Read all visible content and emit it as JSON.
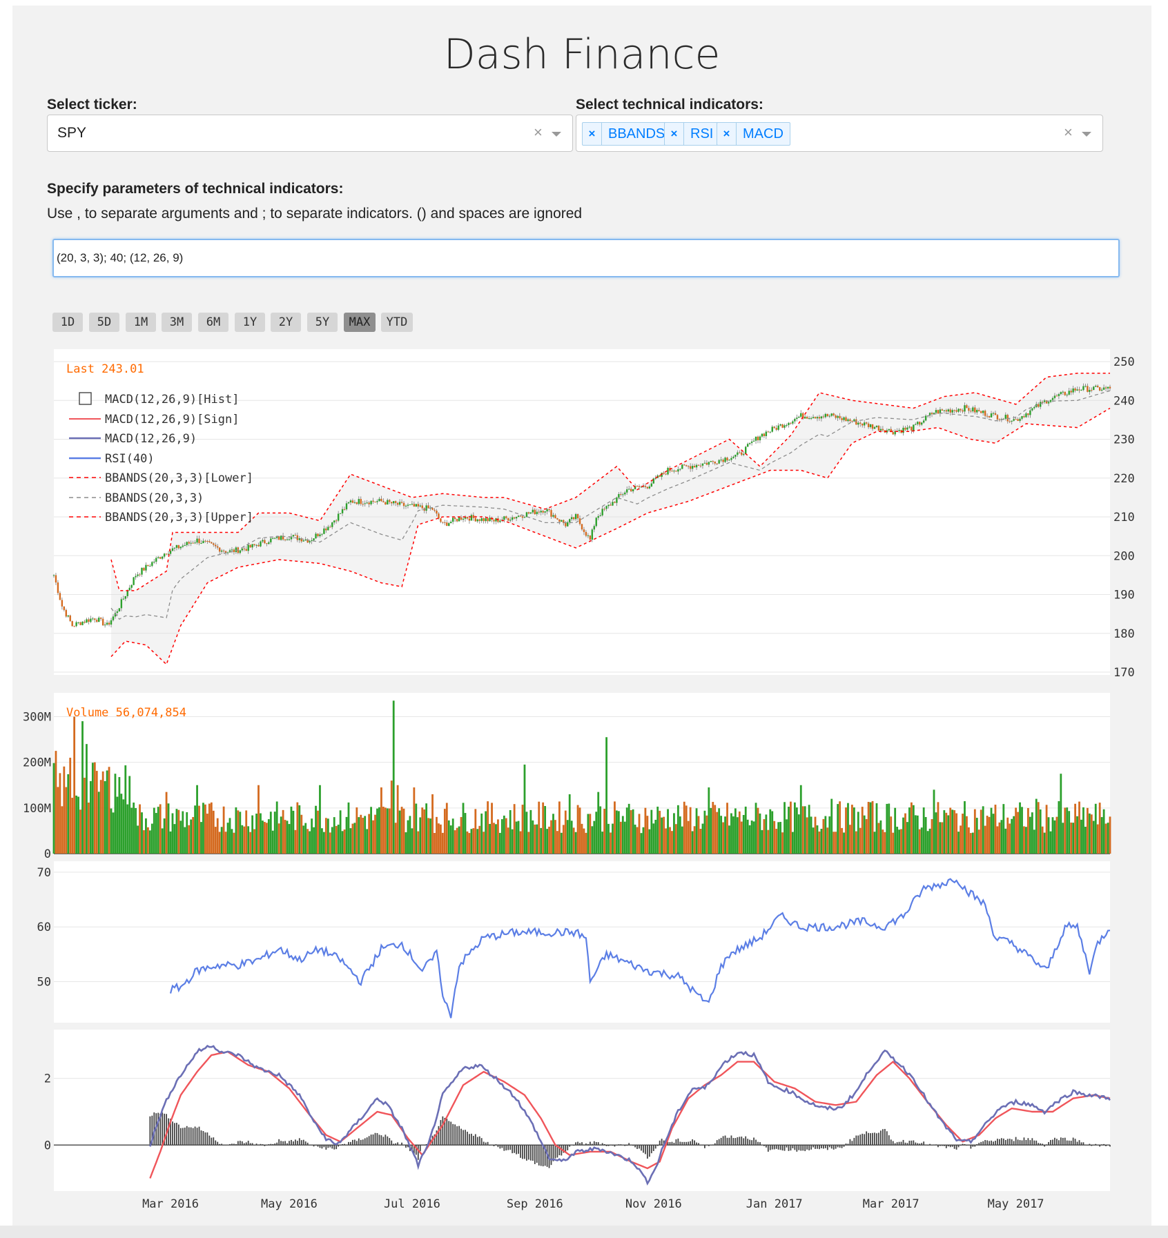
{
  "title": "Dash Finance",
  "ticker": {
    "label": "Select ticker:",
    "value": "SPY"
  },
  "indicators": {
    "label": "Select technical indicators:",
    "tags": [
      "BBANDS",
      "RSI",
      "MACD"
    ]
  },
  "params": {
    "label": "Specify parameters of technical indicators:",
    "hint": "Use , to separate arguments and ; to separate indicators. () and spaces are ignored",
    "value": "(20, 3, 3); 40; (12, 26, 9)"
  },
  "ranges": {
    "buttons": [
      "1D",
      "5D",
      "1M",
      "3M",
      "6M",
      "1Y",
      "2Y",
      "5Y",
      "MAX",
      "YTD"
    ],
    "active": "MAX"
  },
  "colors": {
    "up": "#2ca02c",
    "down": "#d46a1f",
    "bband_outer": "#ff0000",
    "bband_mid": "#8c8c8c",
    "rsi": "#5b7ee5",
    "macd": "#6b6fb5",
    "signal": "#f0555a",
    "annot": "#ff6a00"
  },
  "chart_data": [
    {
      "type": "candlestick",
      "annotation": "Last 243.01",
      "ylim": [
        170,
        250
      ],
      "yticks": [
        170,
        180,
        190,
        200,
        210,
        220,
        230,
        240,
        250
      ],
      "legend": [
        "MACD(12,26,9)[Hist]",
        "MACD(12,26,9)[Sign]",
        "MACD(12,26,9)",
        "RSI(40)",
        "BBANDS(20,3,3)[Lower]",
        "BBANDS(20,3,3)",
        "BBANDS(20,3,3)[Upper]"
      ],
      "legend_position": "top-left",
      "close_anchors": [
        [
          0,
          195
        ],
        [
          4,
          187
        ],
        [
          9,
          182
        ],
        [
          14,
          183
        ],
        [
          20,
          184
        ],
        [
          26,
          182
        ],
        [
          30,
          185
        ],
        [
          40,
          195
        ],
        [
          55,
          201
        ],
        [
          70,
          204
        ],
        [
          85,
          201
        ],
        [
          95,
          202
        ],
        [
          105,
          204
        ],
        [
          115,
          205
        ],
        [
          125,
          204
        ],
        [
          135,
          208
        ],
        [
          145,
          214
        ],
        [
          160,
          214
        ],
        [
          170,
          213
        ],
        [
          185,
          212
        ],
        [
          190,
          208
        ],
        [
          200,
          210
        ],
        [
          215,
          209
        ],
        [
          225,
          210
        ],
        [
          240,
          212
        ],
        [
          250,
          208
        ],
        [
          255,
          210
        ],
        [
          262,
          204
        ],
        [
          265,
          210
        ],
        [
          280,
          217
        ],
        [
          290,
          218
        ],
        [
          300,
          222
        ],
        [
          320,
          224
        ],
        [
          335,
          226
        ],
        [
          345,
          231
        ],
        [
          365,
          236
        ],
        [
          380,
          236
        ],
        [
          395,
          234
        ],
        [
          410,
          232
        ],
        [
          420,
          233
        ],
        [
          430,
          237
        ],
        [
          445,
          238
        ],
        [
          460,
          236
        ],
        [
          470,
          235
        ],
        [
          485,
          240
        ],
        [
          500,
          243
        ],
        [
          516,
          243
        ]
      ],
      "bb_upper_anchors": [
        [
          28,
          199
        ],
        [
          32,
          191
        ],
        [
          40,
          191
        ],
        [
          55,
          196
        ],
        [
          58,
          206
        ],
        [
          70,
          206
        ],
        [
          90,
          206
        ],
        [
          100,
          211
        ],
        [
          115,
          211
        ],
        [
          130,
          209
        ],
        [
          145,
          221
        ],
        [
          160,
          218
        ],
        [
          175,
          215
        ],
        [
          190,
          216
        ],
        [
          210,
          215
        ],
        [
          220,
          215
        ],
        [
          240,
          212
        ],
        [
          255,
          215
        ],
        [
          275,
          223
        ],
        [
          285,
          217
        ],
        [
          300,
          222
        ],
        [
          330,
          230
        ],
        [
          345,
          223
        ],
        [
          360,
          231
        ],
        [
          374,
          242
        ],
        [
          390,
          240
        ],
        [
          405,
          239
        ],
        [
          420,
          238
        ],
        [
          435,
          241
        ],
        [
          450,
          242
        ],
        [
          470,
          239
        ],
        [
          485,
          246
        ],
        [
          500,
          247
        ],
        [
          516,
          247
        ]
      ],
      "bb_lower_anchors": [
        [
          28,
          174
        ],
        [
          35,
          178
        ],
        [
          45,
          177
        ],
        [
          55,
          172
        ],
        [
          62,
          182
        ],
        [
          75,
          193
        ],
        [
          90,
          197
        ],
        [
          110,
          199
        ],
        [
          130,
          198
        ],
        [
          145,
          196
        ],
        [
          160,
          193
        ],
        [
          170,
          192
        ],
        [
          178,
          208
        ],
        [
          190,
          210
        ],
        [
          210,
          210
        ],
        [
          220,
          209
        ],
        [
          240,
          205
        ],
        [
          255,
          202
        ],
        [
          275,
          207
        ],
        [
          290,
          211
        ],
        [
          310,
          214
        ],
        [
          330,
          218
        ],
        [
          350,
          222
        ],
        [
          365,
          222
        ],
        [
          378,
          220
        ],
        [
          390,
          229
        ],
        [
          402,
          232
        ],
        [
          418,
          232
        ],
        [
          432,
          233
        ],
        [
          448,
          230
        ],
        [
          460,
          229
        ],
        [
          475,
          234
        ],
        [
          500,
          233
        ],
        [
          516,
          238
        ]
      ]
    },
    {
      "type": "bar",
      "annotation": "Volume 56,074,854",
      "ylim": [
        0,
        340
      ],
      "yticks": [
        {
          "value": 0,
          "label": "0"
        },
        {
          "value": 100,
          "label": "100M"
        },
        {
          "value": 200,
          "label": "200M"
        },
        {
          "value": 300,
          "label": "300M"
        }
      ],
      "spikes": [
        [
          1,
          225
        ],
        [
          8,
          210
        ],
        [
          10,
          300
        ],
        [
          14,
          290
        ],
        [
          16,
          240
        ],
        [
          20,
          200
        ],
        [
          24,
          180
        ],
        [
          27,
          190
        ],
        [
          30,
          175
        ],
        [
          37,
          170
        ],
        [
          55,
          135
        ],
        [
          70,
          150
        ],
        [
          100,
          150
        ],
        [
          130,
          150
        ],
        [
          160,
          145
        ],
        [
          165,
          160
        ],
        [
          166,
          335
        ],
        [
          168,
          150
        ],
        [
          176,
          145
        ],
        [
          182,
          110
        ],
        [
          185,
          130
        ],
        [
          230,
          195
        ],
        [
          252,
          130
        ],
        [
          266,
          135
        ],
        [
          270,
          255
        ],
        [
          320,
          145
        ],
        [
          365,
          150
        ],
        [
          380,
          120
        ],
        [
          400,
          115
        ],
        [
          430,
          140
        ],
        [
          480,
          120
        ],
        [
          492,
          175
        ],
        [
          505,
          100
        ],
        [
          512,
          80
        ]
      ]
    },
    {
      "type": "line",
      "series": [
        {
          "name": "RSI(40)"
        }
      ],
      "ylim": [
        43,
        71
      ],
      "yticks": [
        50,
        60,
        70
      ],
      "anchors": [
        [
          57,
          48.5
        ],
        [
          62,
          49
        ],
        [
          70,
          52
        ],
        [
          80,
          53
        ],
        [
          90,
          53
        ],
        [
          100,
          54
        ],
        [
          110,
          56
        ],
        [
          120,
          54
        ],
        [
          130,
          56
        ],
        [
          140,
          54
        ],
        [
          150,
          50
        ],
        [
          160,
          56
        ],
        [
          170,
          57
        ],
        [
          180,
          52
        ],
        [
          187,
          55
        ],
        [
          188,
          54
        ],
        [
          190,
          47
        ],
        [
          194,
          44
        ],
        [
          198,
          53
        ],
        [
          210,
          58
        ],
        [
          225,
          59
        ],
        [
          240,
          59
        ],
        [
          255,
          59
        ],
        [
          260,
          58
        ],
        [
          262,
          50
        ],
        [
          270,
          55
        ],
        [
          290,
          52
        ],
        [
          305,
          51
        ],
        [
          316,
          47
        ],
        [
          320,
          46
        ],
        [
          325,
          52
        ],
        [
          330,
          55
        ],
        [
          345,
          58
        ],
        [
          355,
          62
        ],
        [
          365,
          60
        ],
        [
          380,
          60
        ],
        [
          395,
          61
        ],
        [
          405,
          60
        ],
        [
          415,
          62
        ],
        [
          425,
          67
        ],
        [
          435,
          68
        ],
        [
          441,
          69
        ],
        [
          445,
          67
        ],
        [
          455,
          64
        ],
        [
          460,
          58
        ],
        [
          468,
          57
        ],
        [
          475,
          55
        ],
        [
          485,
          52
        ],
        [
          494,
          60
        ],
        [
          500,
          60
        ],
        [
          506,
          52
        ],
        [
          510,
          57
        ],
        [
          518,
          61
        ],
        [
          526,
          60
        ],
        [
          535,
          62
        ],
        [
          545,
          61
        ]
      ]
    },
    {
      "type": "line",
      "series": [
        {
          "name": "MACD(12,26,9)"
        },
        {
          "name": "MACD(12,26,9)[Sign]"
        },
        {
          "name": "MACD(12,26,9)[Hist]"
        }
      ],
      "ylim": [
        -1.3,
        3.3
      ],
      "yticks": [
        0,
        2
      ],
      "xticks": [
        {
          "label": "Mar 2016",
          "i": 57
        },
        {
          "label": "May 2016",
          "i": 115
        },
        {
          "label": "Jul 2016",
          "i": 175
        },
        {
          "label": "Sep 2016",
          "i": 235
        },
        {
          "label": "Nov 2016",
          "i": 293
        },
        {
          "label": "Jan 2017",
          "i": 352
        },
        {
          "label": "Mar 2017",
          "i": 409
        },
        {
          "label": "May 2017",
          "i": 470
        }
      ],
      "macd_anchors": [
        [
          47,
          0
        ],
        [
          52,
          0.9
        ],
        [
          57,
          1.6
        ],
        [
          62,
          2.1
        ],
        [
          70,
          2.8
        ],
        [
          77,
          3.0
        ],
        [
          82,
          2.8
        ],
        [
          90,
          2.7
        ],
        [
          100,
          2.3
        ],
        [
          110,
          2.1
        ],
        [
          120,
          1.5
        ],
        [
          128,
          0.6
        ],
        [
          133,
          0.2
        ],
        [
          138,
          0
        ],
        [
          143,
          0.3
        ],
        [
          150,
          0.8
        ],
        [
          158,
          1.4
        ],
        [
          163,
          1.2
        ],
        [
          170,
          0.5
        ],
        [
          178,
          -0.6
        ],
        [
          183,
          0
        ],
        [
          190,
          1.5
        ],
        [
          200,
          2.3
        ],
        [
          208,
          2.4
        ],
        [
          216,
          2.0
        ],
        [
          226,
          1.4
        ],
        [
          234,
          0.6
        ],
        [
          242,
          -0.4
        ],
        [
          248,
          -0.5
        ],
        [
          256,
          -0.2
        ],
        [
          266,
          -0.1
        ],
        [
          275,
          -0.3
        ],
        [
          283,
          -0.5
        ],
        [
          290,
          -1.1
        ],
        [
          294,
          -0.7
        ],
        [
          298,
          0
        ],
        [
          305,
          1.0
        ],
        [
          312,
          1.7
        ],
        [
          318,
          1.7
        ],
        [
          328,
          2.5
        ],
        [
          335,
          2.8
        ],
        [
          342,
          2.7
        ],
        [
          350,
          1.8
        ],
        [
          360,
          1.6
        ],
        [
          368,
          1.3
        ],
        [
          376,
          1.1
        ],
        [
          384,
          1.1
        ],
        [
          392,
          1.6
        ],
        [
          400,
          2.4
        ],
        [
          406,
          2.8
        ],
        [
          412,
          2.5
        ],
        [
          420,
          2.0
        ],
        [
          428,
          1.2
        ],
        [
          435,
          0.6
        ],
        [
          442,
          0.1
        ],
        [
          448,
          0.1
        ],
        [
          455,
          0.6
        ],
        [
          462,
          1.1
        ],
        [
          470,
          1.3
        ],
        [
          478,
          1.2
        ],
        [
          484,
          1.0
        ],
        [
          490,
          1.3
        ],
        [
          498,
          1.6
        ],
        [
          506,
          1.5
        ],
        [
          516,
          1.4
        ]
      ],
      "signal_anchors": [
        [
          47,
          -1.0
        ],
        [
          52,
          -0.2
        ],
        [
          57,
          0.7
        ],
        [
          62,
          1.5
        ],
        [
          70,
          2.2
        ],
        [
          77,
          2.7
        ],
        [
          85,
          2.8
        ],
        [
          95,
          2.4
        ],
        [
          105,
          2.2
        ],
        [
          115,
          1.7
        ],
        [
          125,
          0.9
        ],
        [
          133,
          0.3
        ],
        [
          140,
          0.1
        ],
        [
          148,
          0.5
        ],
        [
          158,
          1.0
        ],
        [
          165,
          0.9
        ],
        [
          173,
          0.2
        ],
        [
          180,
          -0.3
        ],
        [
          190,
          0.6
        ],
        [
          200,
          1.8
        ],
        [
          210,
          2.2
        ],
        [
          220,
          1.9
        ],
        [
          230,
          1.5
        ],
        [
          238,
          0.8
        ],
        [
          245,
          0
        ],
        [
          252,
          -0.3
        ],
        [
          262,
          -0.2
        ],
        [
          272,
          -0.2
        ],
        [
          282,
          -0.5
        ],
        [
          290,
          -0.7
        ],
        [
          296,
          -0.5
        ],
        [
          302,
          0.5
        ],
        [
          310,
          1.4
        ],
        [
          318,
          1.8
        ],
        [
          326,
          2.1
        ],
        [
          334,
          2.5
        ],
        [
          342,
          2.5
        ],
        [
          352,
          1.9
        ],
        [
          362,
          1.7
        ],
        [
          372,
          1.3
        ],
        [
          382,
          1.2
        ],
        [
          392,
          1.3
        ],
        [
          402,
          2.1
        ],
        [
          410,
          2.5
        ],
        [
          418,
          2.0
        ],
        [
          428,
          1.2
        ],
        [
          436,
          0.6
        ],
        [
          444,
          0.1
        ],
        [
          452,
          0.3
        ],
        [
          460,
          0.8
        ],
        [
          468,
          1.1
        ],
        [
          478,
          1.0
        ],
        [
          488,
          1.0
        ],
        [
          498,
          1.4
        ],
        [
          508,
          1.5
        ],
        [
          516,
          1.4
        ]
      ]
    }
  ]
}
